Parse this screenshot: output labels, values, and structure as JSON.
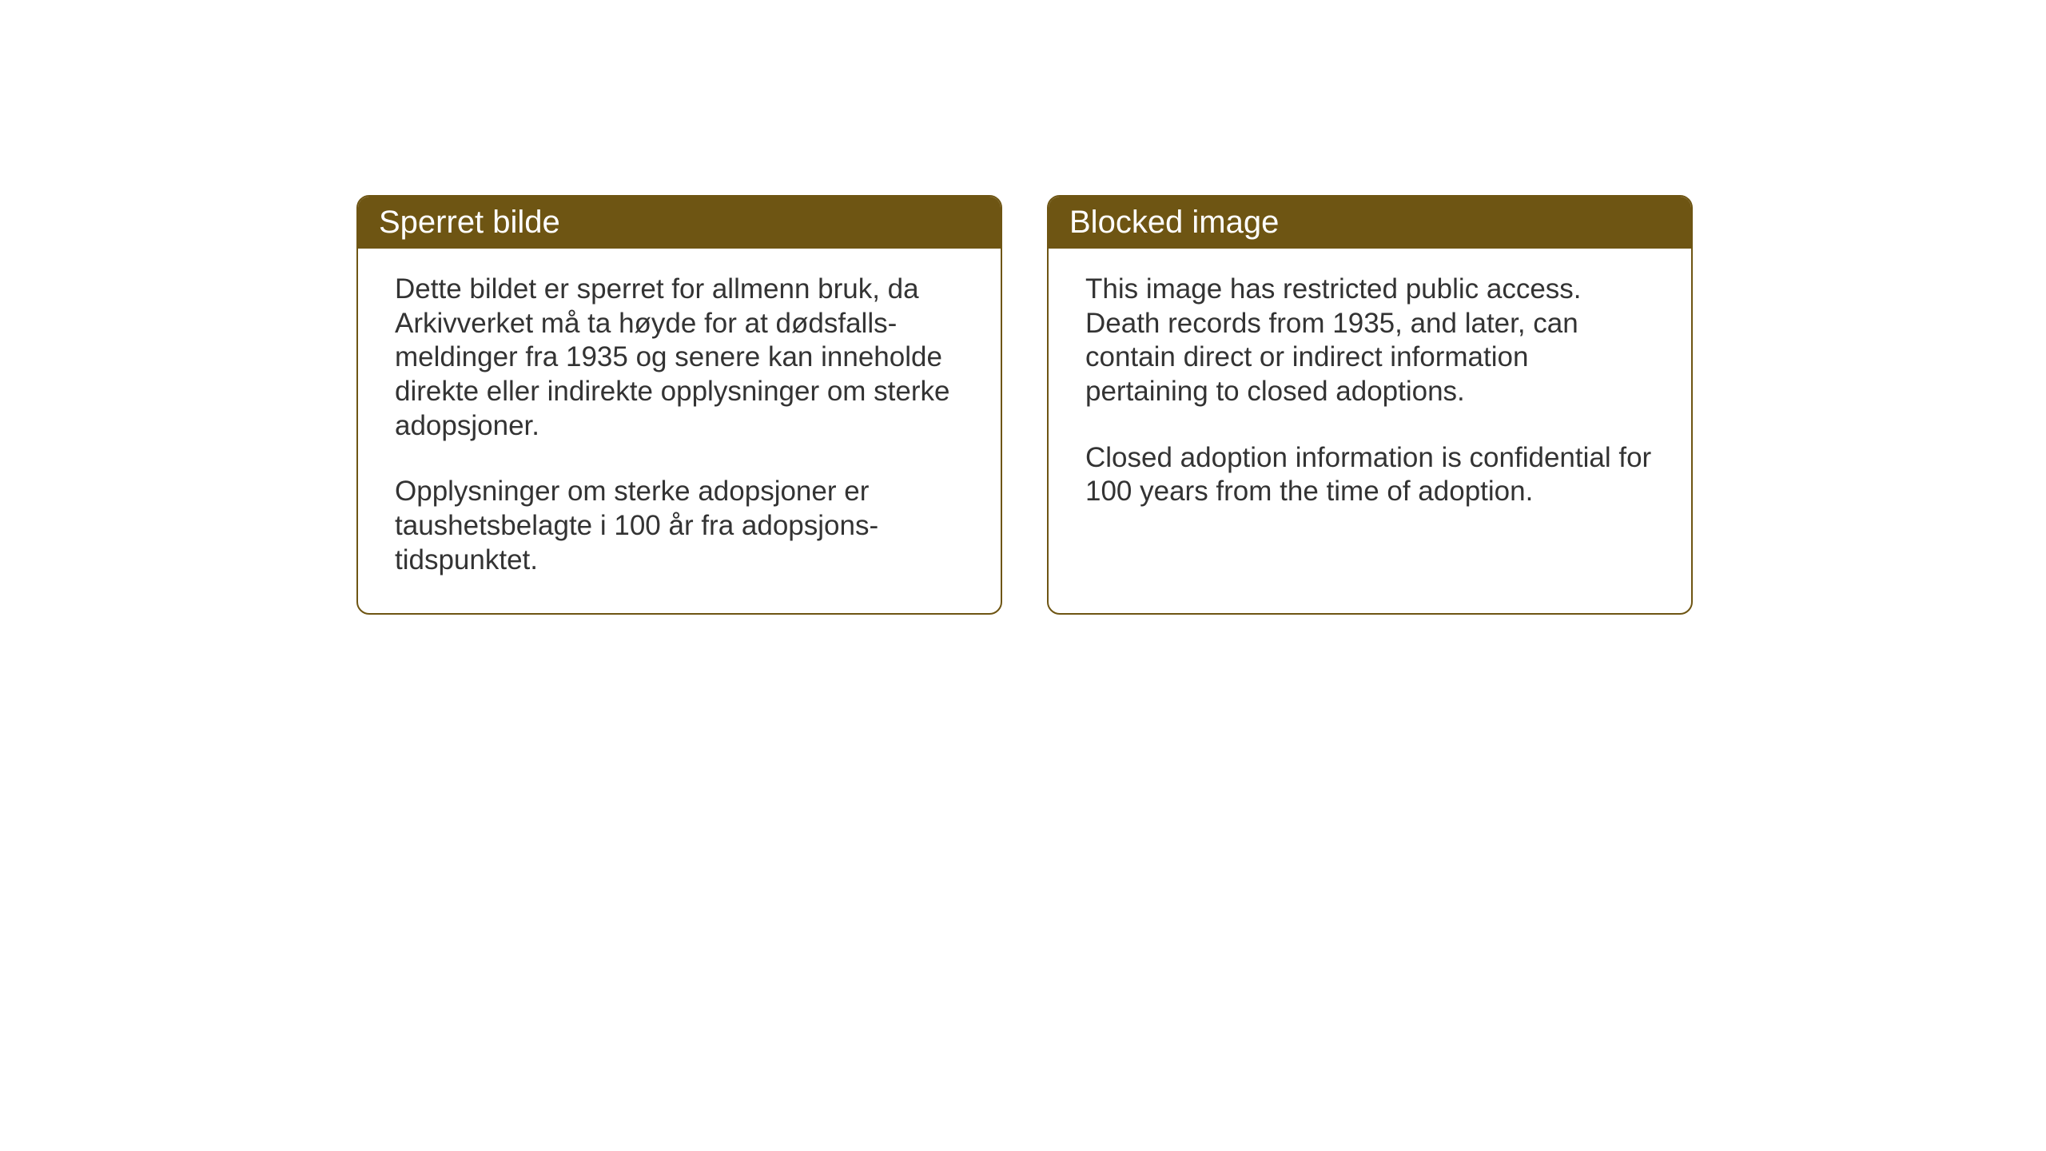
{
  "layout": {
    "background_color": "#ffffff",
    "card_border_color": "#6e5513",
    "card_header_bg": "#6e5513",
    "card_header_text_color": "#ffffff",
    "card_body_text_color": "#333333",
    "card_border_radius": 16,
    "header_fontsize": 40,
    "body_fontsize": 35
  },
  "cards": {
    "norwegian": {
      "title": "Sperret bilde",
      "paragraph1": "Dette bildet er sperret for allmenn bruk, da Arkivverket må ta høyde for at dødsfalls-meldinger fra 1935 og senere kan inneholde direkte eller indirekte opplysninger om sterke adopsjoner.",
      "paragraph2": "Opplysninger om sterke adopsjoner er taushetsbelagte i 100 år fra adopsjons-tidspunktet."
    },
    "english": {
      "title": "Blocked image",
      "paragraph1": "This image has restricted public access. Death records from 1935, and later, can contain direct or indirect information pertaining to closed adoptions.",
      "paragraph2": "Closed adoption information is confidential for 100 years from the time of adoption."
    }
  }
}
